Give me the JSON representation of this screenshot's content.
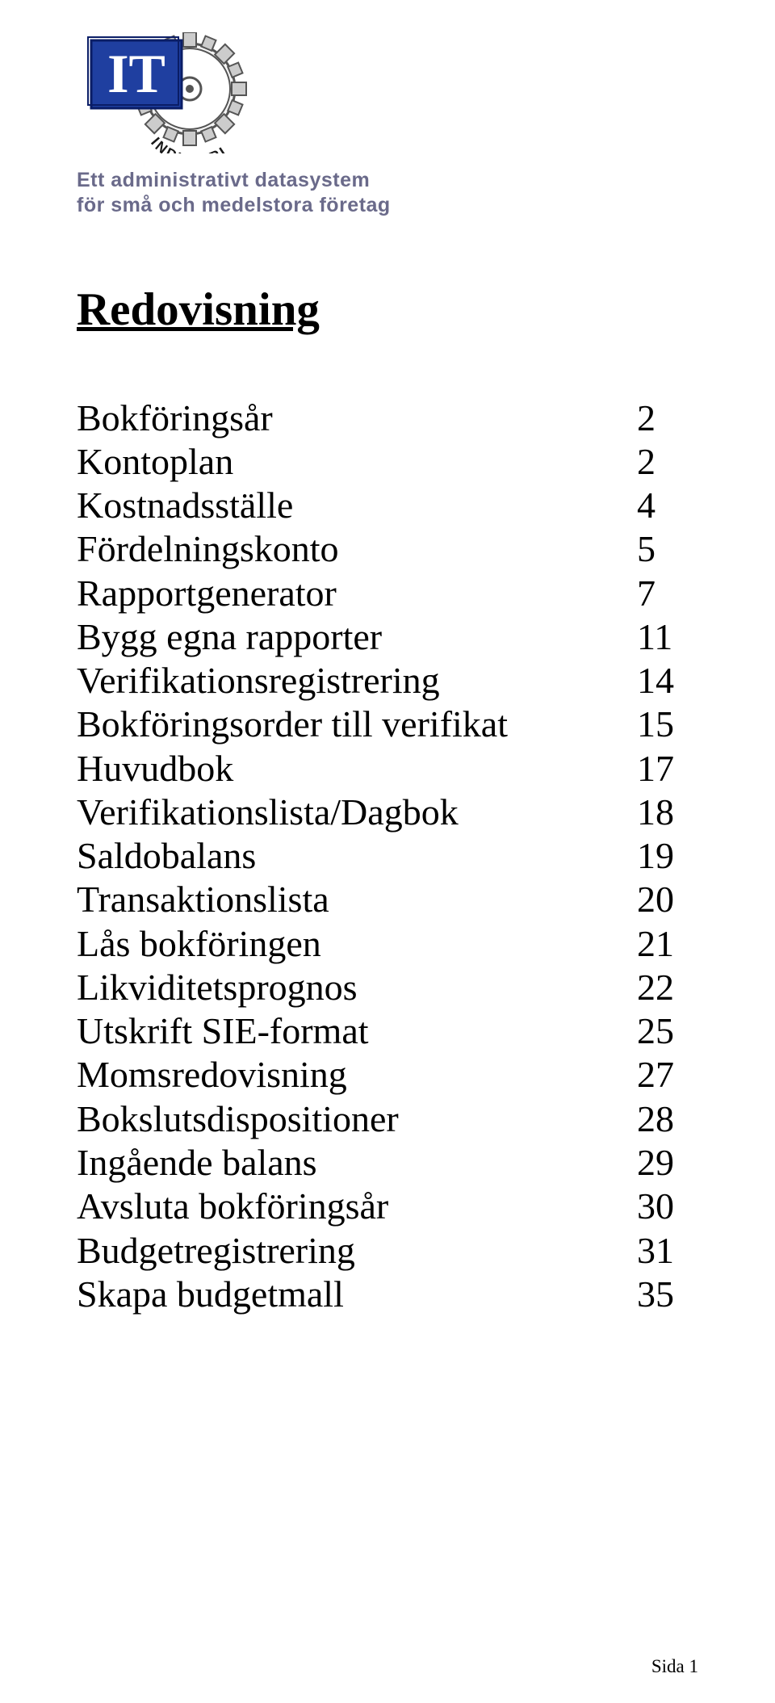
{
  "logo": {
    "it_text": "IT",
    "sub_text": "INDUSTRI",
    "box_fill": "#1f3fa0",
    "box_text_color": "#ffffff",
    "gear_stroke": "#555555",
    "gear_fill": "#f0f0f0",
    "sub_text_color": "#1a1a1a"
  },
  "tagline": {
    "line1": "Ett administrativt datasystem",
    "line2": "för små och medelstora företag",
    "color": "#6a6a8a"
  },
  "title": "Redovisning",
  "toc": [
    {
      "label": "Bokföringsår",
      "page": "2"
    },
    {
      "label": "Kontoplan",
      "page": "2"
    },
    {
      "label": "Kostnadsställe",
      "page": "4"
    },
    {
      "label": "Fördelningskonto",
      "page": "5"
    },
    {
      "label": "Rapportgenerator",
      "page": "7"
    },
    {
      "label": "Bygg egna rapporter",
      "page": "11"
    },
    {
      "label": "Verifikationsregistrering",
      "page": "14"
    },
    {
      "label": "Bokföringsorder till verifikat",
      "page": "15"
    },
    {
      "label": "Huvudbok",
      "page": "17"
    },
    {
      "label": "Verifikationslista/Dagbok",
      "page": "18"
    },
    {
      "label": "Saldobalans",
      "page": "19"
    },
    {
      "label": "Transaktionslista",
      "page": "20"
    },
    {
      "label": "Lås bokföringen",
      "page": "21"
    },
    {
      "label": "Likviditetsprognos",
      "page": "22"
    },
    {
      "label": "Utskrift SIE-format",
      "page": "25"
    },
    {
      "label": "Momsredovisning",
      "page": "27"
    },
    {
      "label": "Bokslutsdispositioner",
      "page": "28"
    },
    {
      "label": "Ingående balans",
      "page": "29"
    },
    {
      "label": "Avsluta bokföringsår",
      "page": "30"
    },
    {
      "label": "Budgetregistrering",
      "page": "31"
    },
    {
      "label": "Skapa budgetmall",
      "page": "35"
    }
  ],
  "footer": "Sida 1"
}
